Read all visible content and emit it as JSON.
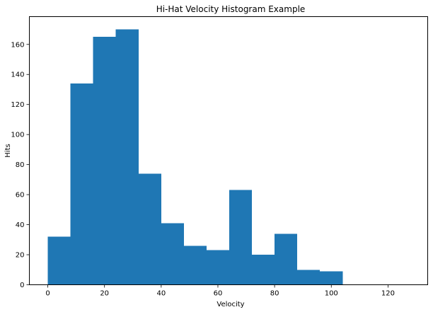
{
  "chart_data": {
    "type": "bar",
    "title": "Hi-Hat Velocity Histogram Example",
    "xlabel": "Velocity",
    "ylabel": "Hits",
    "bar_color": "#1f77b4",
    "bin_edges": [
      0,
      8,
      16,
      24,
      32,
      40,
      48,
      56,
      64,
      72,
      80,
      88,
      96,
      104
    ],
    "values": [
      32,
      134,
      165,
      170,
      74,
      41,
      26,
      23,
      63,
      20,
      34,
      10,
      9
    ],
    "xlim": [
      -6.5,
      134
    ],
    "ylim": [
      0,
      178.5
    ],
    "xticks": [
      0,
      20,
      40,
      60,
      80,
      100,
      120
    ],
    "yticks": [
      0,
      20,
      40,
      60,
      80,
      100,
      120,
      140,
      160
    ],
    "grid": false
  }
}
